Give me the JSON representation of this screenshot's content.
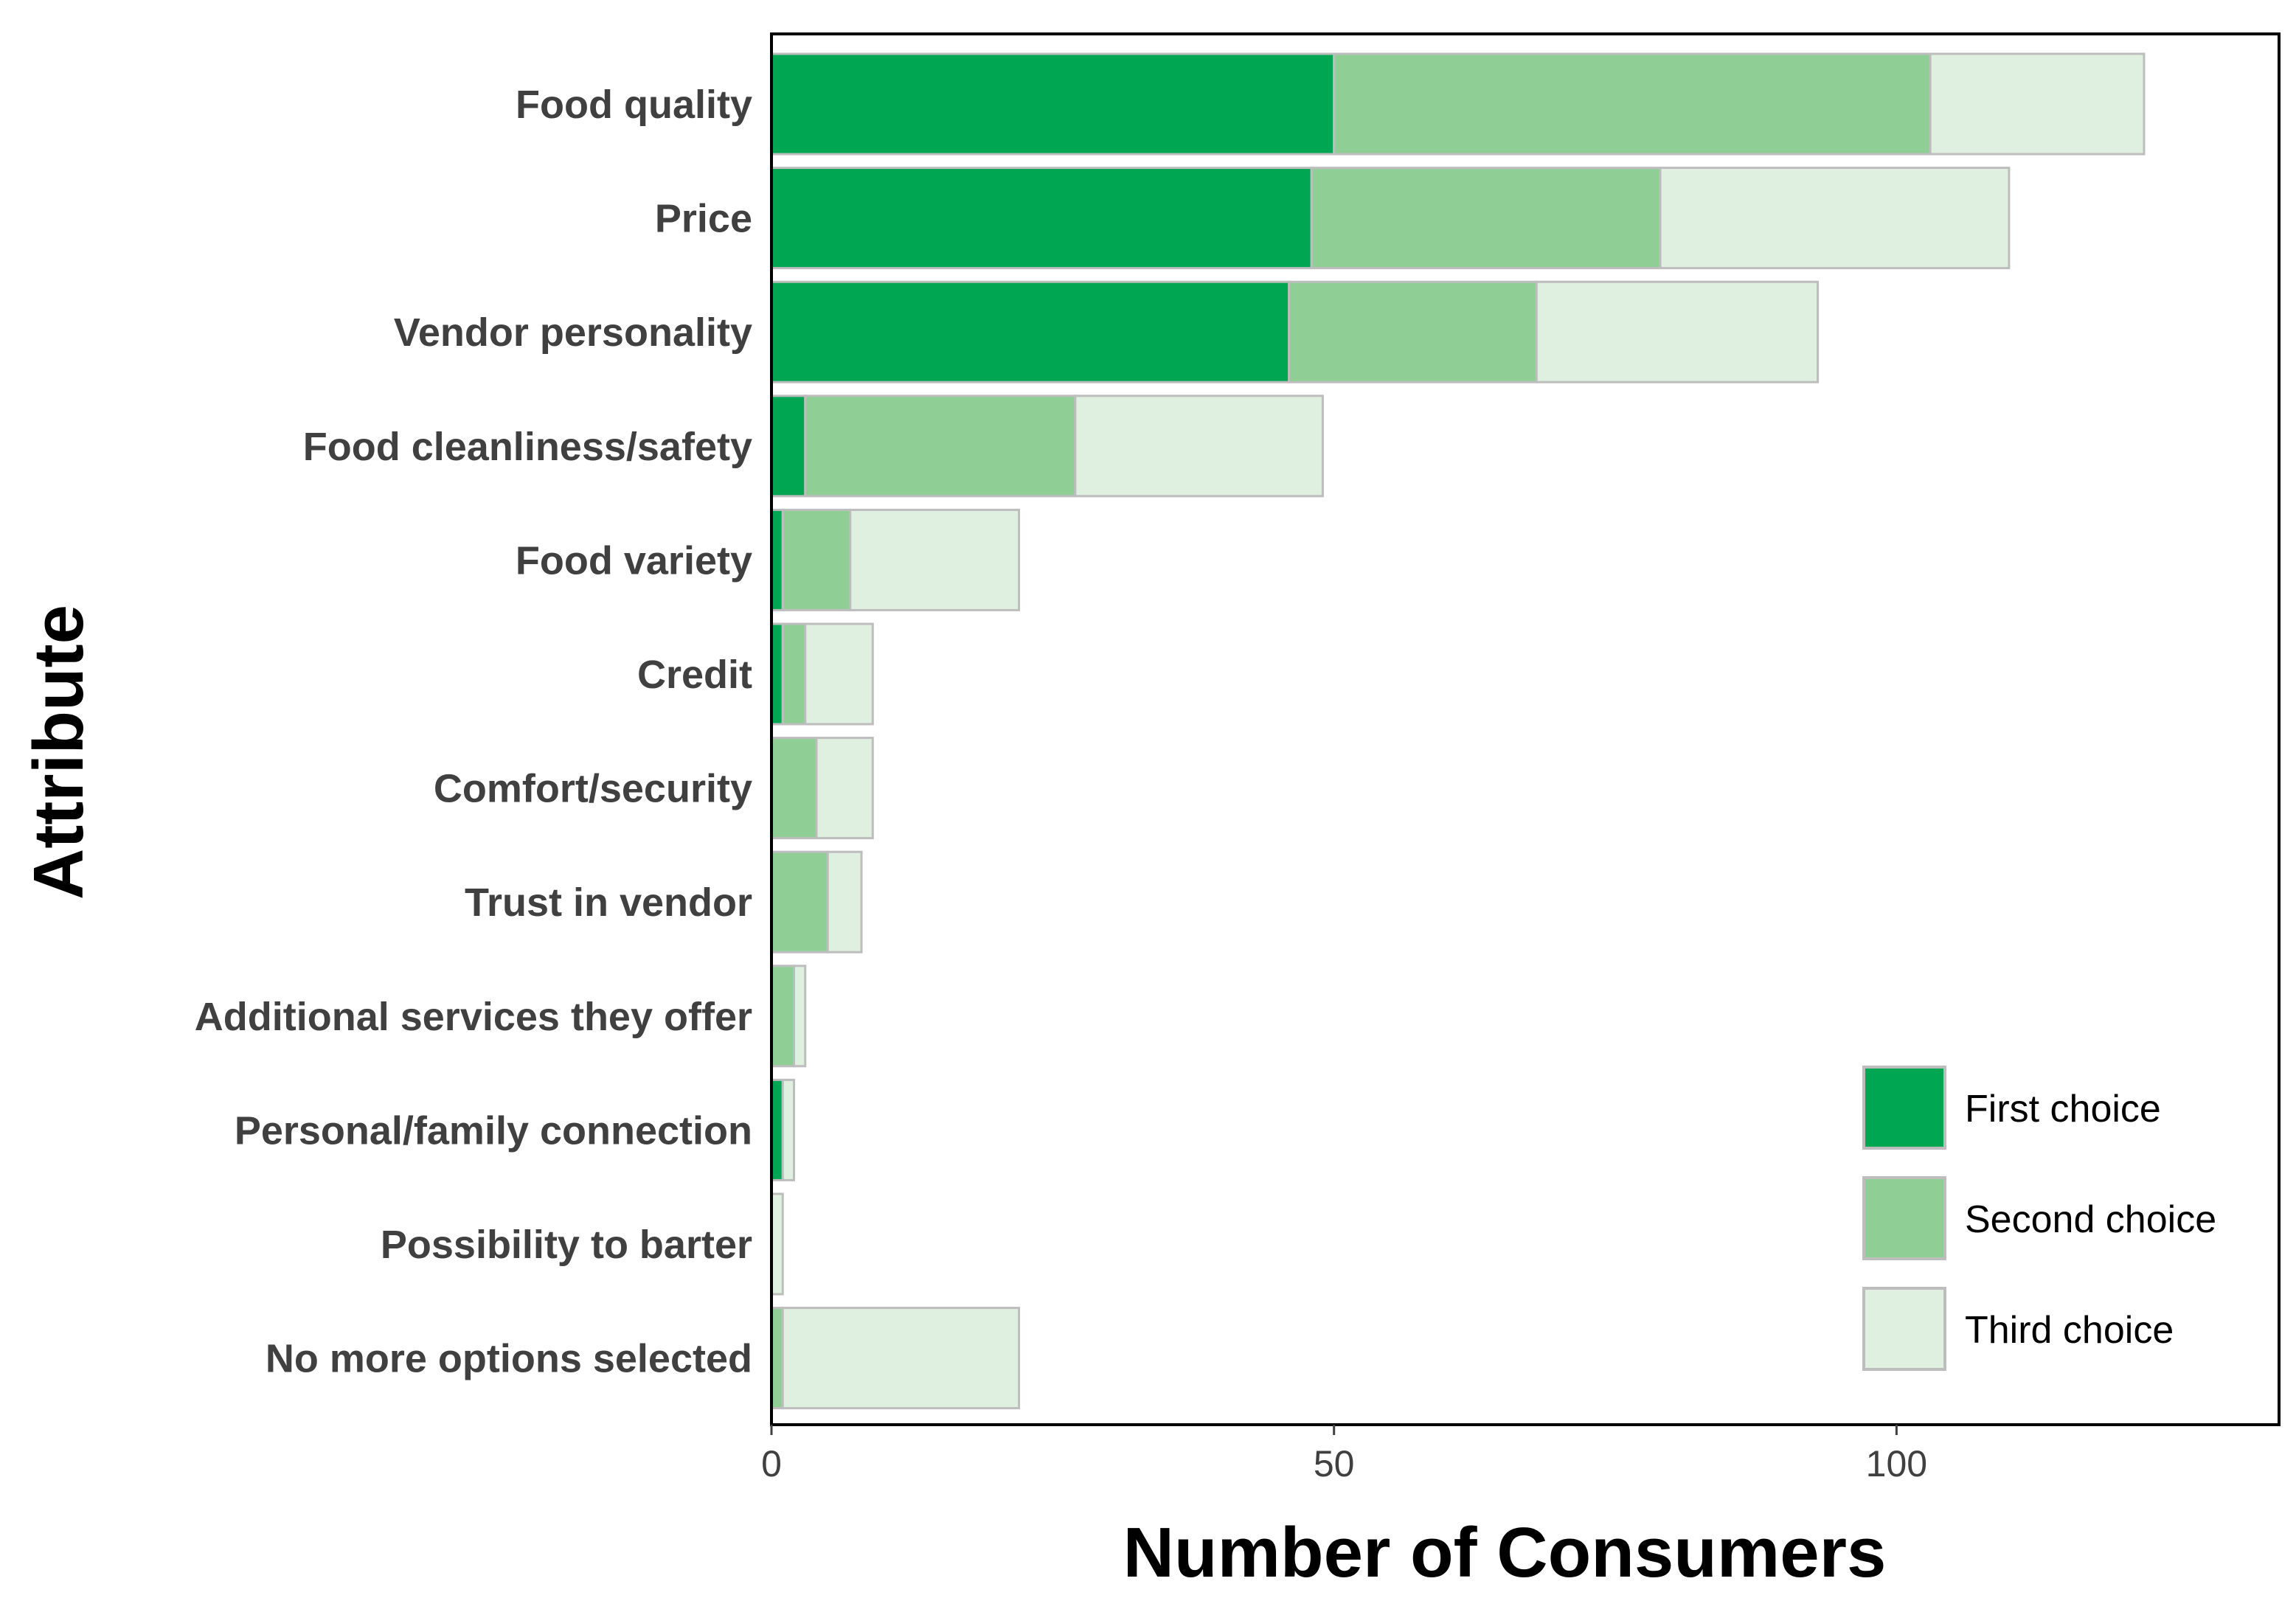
{
  "chart_data": {
    "type": "bar",
    "orientation": "horizontal",
    "stacked": true,
    "xlabel": "Number of Consumers",
    "ylabel": "Attribute",
    "xlim": [
      0,
      134
    ],
    "xticks": [
      0,
      50,
      100
    ],
    "grid": false,
    "legend_position": "bottom-right",
    "categories": [
      "Food quality",
      "Price",
      "Vendor personality",
      "Food cleanliness/safety",
      "Food variety",
      "Credit",
      "Comfort/security",
      "Trust in vendor",
      "Additional services they offer",
      "Personal/family connection",
      "Possibility to barter",
      "No more options selected"
    ],
    "series": [
      {
        "name": "First choice",
        "color": "#00a651",
        "values": [
          50,
          48,
          46,
          3,
          1,
          1,
          0,
          0,
          0,
          1,
          0,
          0
        ]
      },
      {
        "name": "Second choice",
        "color": "#8fcf96",
        "values": [
          53,
          31,
          22,
          24,
          6,
          2,
          4,
          5,
          2,
          0,
          0,
          1
        ]
      },
      {
        "name": "Third choice",
        "color": "#e0f0e0",
        "values": [
          19,
          31,
          25,
          22,
          15,
          6,
          5,
          3,
          1,
          1,
          1,
          21
        ]
      }
    ]
  }
}
